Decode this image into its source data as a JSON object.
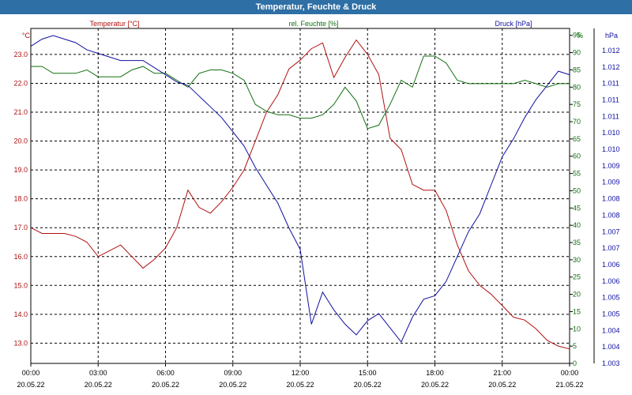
{
  "window": {
    "title": "Temperatur, Feuchte & Druck"
  },
  "chart_data": {
    "type": "line",
    "title": "Temperatur, Feuchte & Druck",
    "x_ticks": [
      {
        "time": "00:00",
        "date": "20.05.22"
      },
      {
        "time": "03:00",
        "date": "20.05.22"
      },
      {
        "time": "06:00",
        "date": "20.05.22"
      },
      {
        "time": "09:00",
        "date": "20.05.22"
      },
      {
        "time": "12:00",
        "date": "20.05.22"
      },
      {
        "time": "15:00",
        "date": "20.05.22"
      },
      {
        "time": "18:00",
        "date": "20.05.22"
      },
      {
        "time": "21:00",
        "date": "20.05.22"
      },
      {
        "time": "00:00",
        "date": "21.05.22"
      }
    ],
    "xlim_hours": [
      0,
      24
    ],
    "grid": true,
    "axes": {
      "temperature": {
        "label": "Temperatur [°C]",
        "unit": "°C",
        "ylim": [
          12.3,
          23.9
        ],
        "ticks": [
          "13.0",
          "14.0",
          "15.0",
          "16.0",
          "17.0",
          "18.0",
          "19.0",
          "20.0",
          "21.0",
          "22.0",
          "23.0"
        ],
        "color": "#b01010"
      },
      "humidity": {
        "label": "rel. Feuchte [%]",
        "unit": "%",
        "ylim": [
          0,
          97
        ],
        "ticks": [
          "0",
          "5",
          "10",
          "15",
          "20",
          "25",
          "30",
          "35",
          "40",
          "45",
          "50",
          "55",
          "60",
          "65",
          "70",
          "75",
          "80",
          "85",
          "90",
          "95"
        ],
        "color": "#107010"
      },
      "pressure": {
        "label": "Druck [hPa]",
        "unit": "hPa",
        "ylim": [
          1.003,
          1.0124
        ],
        "ticks": [
          "1.003",
          "1.004",
          "1.004",
          "1.005",
          "1.005",
          "1.006",
          "1.006",
          "1.007",
          "1.007",
          "1.008",
          "1.008",
          "1.009",
          "1.009",
          "1.010",
          "1.010",
          "1.011",
          "1.011",
          "1.011",
          "1.012",
          "1.012"
        ],
        "color": "#1010a0"
      }
    },
    "series": [
      {
        "name": "Temperatur [°C]",
        "axis": "temperature",
        "color": "#b01010",
        "x": [
          0,
          0.5,
          1,
          1.5,
          2,
          2.5,
          3,
          3.5,
          4,
          4.5,
          5,
          5.5,
          6,
          6.5,
          7,
          7.5,
          8,
          8.5,
          9,
          9.5,
          10,
          10.5,
          11,
          11.5,
          12,
          12.5,
          13,
          13.5,
          14,
          14.5,
          15,
          15.5,
          16,
          16.5,
          17,
          17.5,
          18,
          18.5,
          19,
          19.5,
          20,
          20.5,
          21,
          21.5,
          22,
          22.5,
          23,
          23.5,
          24
        ],
        "values": [
          17.0,
          16.8,
          16.8,
          16.8,
          16.7,
          16.5,
          16.0,
          16.2,
          16.4,
          16.0,
          15.6,
          15.9,
          16.3,
          17.0,
          18.3,
          17.7,
          17.5,
          17.9,
          18.4,
          19.0,
          20.0,
          21.0,
          21.6,
          22.5,
          22.8,
          23.2,
          23.4,
          22.2,
          22.9,
          23.5,
          23.0,
          22.3,
          20.1,
          19.7,
          18.5,
          18.3,
          18.3,
          17.6,
          16.4,
          15.5,
          15.0,
          14.7,
          14.3,
          13.9,
          13.8,
          13.5,
          13.1,
          12.9,
          12.8
        ]
      },
      {
        "name": "rel. Feuchte [%]",
        "axis": "humidity",
        "color": "#107010",
        "x": [
          0,
          0.5,
          1,
          1.5,
          2,
          2.5,
          3,
          3.5,
          4,
          4.5,
          5,
          5.5,
          6,
          6.5,
          7,
          7.5,
          8,
          8.5,
          9,
          9.5,
          10,
          10.5,
          11,
          11.5,
          12,
          12.5,
          13,
          13.5,
          14,
          14.5,
          15,
          15.5,
          16,
          16.5,
          17,
          17.5,
          18,
          18.5,
          19,
          19.5,
          20,
          20.5,
          21,
          21.5,
          22,
          22.5,
          23,
          23.5,
          24
        ],
        "values": [
          86,
          86,
          84,
          84,
          84,
          85,
          83,
          83,
          83,
          85,
          86,
          84,
          84,
          82,
          80,
          84,
          85,
          85,
          84,
          82,
          75,
          73,
          72,
          72,
          71,
          71,
          72,
          75,
          80,
          76,
          68,
          69,
          75,
          82,
          80,
          89,
          89,
          87,
          82,
          81,
          81,
          81,
          81,
          81,
          82,
          81,
          80,
          81,
          81
        ]
      },
      {
        "name": "Druck [hPa]",
        "axis": "pressure",
        "color": "#1010a0",
        "x": [
          0,
          0.5,
          1,
          1.5,
          2,
          2.5,
          3,
          3.5,
          4,
          4.5,
          5,
          5.5,
          6,
          6.5,
          7,
          7.5,
          8,
          8.5,
          9,
          9.5,
          10,
          10.5,
          11,
          11.5,
          12,
          12.5,
          13,
          13.5,
          14,
          14.5,
          15,
          15.5,
          16,
          16.5,
          17,
          17.5,
          18,
          18.5,
          19,
          19.5,
          20,
          20.5,
          21,
          21.5,
          22,
          22.5,
          23,
          23.5,
          24
        ],
        "values": [
          1.0119,
          1.0121,
          1.0122,
          1.0121,
          1.012,
          1.0118,
          1.0117,
          1.0116,
          1.0115,
          1.0115,
          1.0115,
          1.0113,
          1.0111,
          1.0109,
          1.0108,
          1.0105,
          1.0102,
          1.0099,
          1.0095,
          1.0091,
          1.0085,
          1.008,
          1.0075,
          1.0068,
          1.0062,
          1.0041,
          1.005,
          1.0045,
          1.0041,
          1.0038,
          1.0042,
          1.0044,
          1.004,
          1.0036,
          1.0043,
          1.0048,
          1.0049,
          1.0053,
          1.006,
          1.0067,
          1.0072,
          1.008,
          1.0088,
          1.0093,
          1.0099,
          1.0104,
          1.0108,
          1.0112,
          1.0111
        ]
      }
    ]
  }
}
